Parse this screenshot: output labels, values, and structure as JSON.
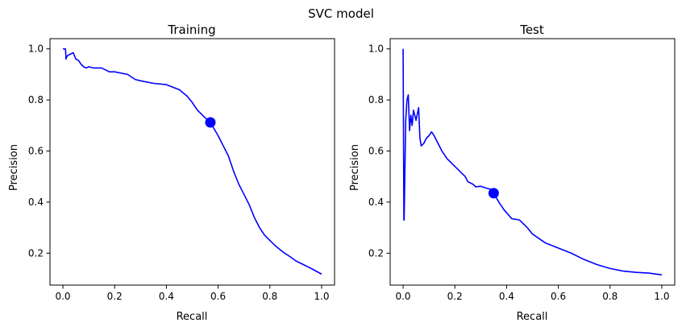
{
  "figure": {
    "suptitle": "SVC model"
  },
  "chart_data": [
    {
      "type": "line",
      "title": "Training",
      "xlabel": "Recall",
      "ylabel": "Precision",
      "xlim": [
        -0.05,
        1.05
      ],
      "ylim": [
        0.075,
        1.04
      ],
      "xticks": [
        0.0,
        0.2,
        0.4,
        0.6,
        0.8,
        1.0
      ],
      "xtick_labels": [
        "0.0",
        "0.2",
        "0.4",
        "0.6",
        "0.8",
        "1.0"
      ],
      "yticks": [
        0.2,
        0.4,
        0.6,
        0.8,
        1.0
      ],
      "ytick_labels": [
        "0.2",
        "0.4",
        "0.6",
        "0.8",
        "1.0"
      ],
      "grid": false,
      "line_color": "#0000ff",
      "series": [
        {
          "x": [
            0.0,
            0.01,
            0.012,
            0.015,
            0.02,
            0.03,
            0.04,
            0.05,
            0.06,
            0.07,
            0.08,
            0.09,
            0.1,
            0.12,
            0.15,
            0.18,
            0.2,
            0.25,
            0.28,
            0.3,
            0.35,
            0.4,
            0.45,
            0.48,
            0.5,
            0.52,
            0.55,
            0.57,
            0.6,
            0.62,
            0.64,
            0.66,
            0.68,
            0.7,
            0.72,
            0.74,
            0.76,
            0.78,
            0.8,
            0.82,
            0.85,
            0.88,
            0.9,
            0.93,
            0.96,
            1.0
          ],
          "y": [
            1.0,
            1.0,
            0.96,
            0.97,
            0.975,
            0.98,
            0.985,
            0.96,
            0.955,
            0.94,
            0.93,
            0.925,
            0.93,
            0.925,
            0.925,
            0.91,
            0.91,
            0.9,
            0.88,
            0.875,
            0.865,
            0.86,
            0.84,
            0.815,
            0.79,
            0.76,
            0.73,
            0.712,
            0.66,
            0.62,
            0.58,
            0.52,
            0.47,
            0.43,
            0.39,
            0.34,
            0.3,
            0.27,
            0.25,
            0.23,
            0.205,
            0.185,
            0.17,
            0.155,
            0.14,
            0.118
          ]
        }
      ],
      "marker": {
        "x": 0.57,
        "y": 0.712
      }
    },
    {
      "type": "line",
      "title": "Test",
      "xlabel": "Recall",
      "ylabel": "Precision",
      "xlim": [
        -0.05,
        1.05
      ],
      "ylim": [
        0.075,
        1.04
      ],
      "xticks": [
        0.0,
        0.2,
        0.4,
        0.6,
        0.8,
        1.0
      ],
      "xtick_labels": [
        "0.0",
        "0.2",
        "0.4",
        "0.6",
        "0.8",
        "1.0"
      ],
      "yticks": [
        0.2,
        0.4,
        0.6,
        0.8,
        1.0
      ],
      "ytick_labels": [
        "0.2",
        "0.4",
        "0.6",
        "0.8",
        "1.0"
      ],
      "grid": false,
      "line_color": "#0000ff",
      "series": [
        {
          "x": [
            0.0,
            0.003,
            0.004,
            0.01,
            0.015,
            0.02,
            0.025,
            0.03,
            0.035,
            0.04,
            0.05,
            0.06,
            0.065,
            0.07,
            0.08,
            0.09,
            0.1,
            0.11,
            0.12,
            0.13,
            0.15,
            0.17,
            0.19,
            0.2,
            0.22,
            0.24,
            0.25,
            0.27,
            0.28,
            0.3,
            0.32,
            0.34,
            0.35,
            0.37,
            0.39,
            0.42,
            0.45,
            0.48,
            0.5,
            0.55,
            0.6,
            0.65,
            0.7,
            0.75,
            0.8,
            0.85,
            0.9,
            0.95,
            1.0
          ],
          "y": [
            1.0,
            0.33,
            0.33,
            0.72,
            0.8,
            0.82,
            0.68,
            0.74,
            0.7,
            0.76,
            0.72,
            0.77,
            0.65,
            0.62,
            0.63,
            0.65,
            0.66,
            0.675,
            0.66,
            0.64,
            0.6,
            0.57,
            0.55,
            0.54,
            0.52,
            0.5,
            0.48,
            0.47,
            0.46,
            0.462,
            0.455,
            0.45,
            0.435,
            0.4,
            0.37,
            0.335,
            0.33,
            0.3,
            0.275,
            0.24,
            0.22,
            0.2,
            0.175,
            0.155,
            0.14,
            0.13,
            0.125,
            0.122,
            0.115
          ]
        }
      ],
      "marker": {
        "x": 0.35,
        "y": 0.435
      }
    }
  ]
}
